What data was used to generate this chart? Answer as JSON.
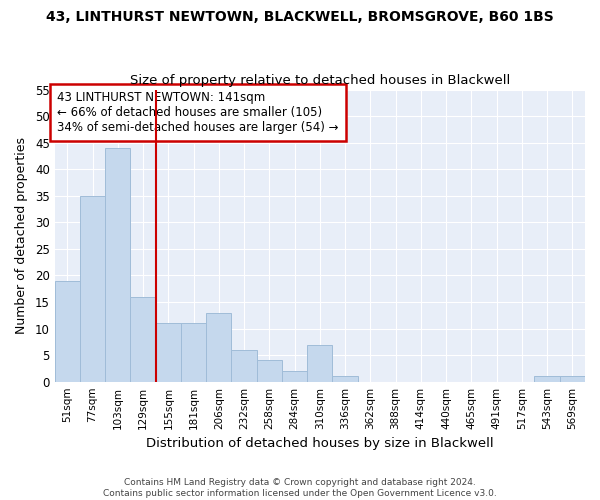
{
  "title1": "43, LINTHURST NEWTOWN, BLACKWELL, BROMSGROVE, B60 1BS",
  "title2": "Size of property relative to detached houses in Blackwell",
  "xlabel": "Distribution of detached houses by size in Blackwell",
  "ylabel": "Number of detached properties",
  "categories": [
    "51sqm",
    "77sqm",
    "103sqm",
    "129sqm",
    "155sqm",
    "181sqm",
    "206sqm",
    "232sqm",
    "258sqm",
    "284sqm",
    "310sqm",
    "336sqm",
    "362sqm",
    "388sqm",
    "414sqm",
    "440sqm",
    "465sqm",
    "491sqm",
    "517sqm",
    "543sqm",
    "569sqm"
  ],
  "values": [
    19,
    35,
    44,
    16,
    11,
    11,
    13,
    6,
    4,
    2,
    7,
    1,
    0,
    0,
    0,
    0,
    0,
    0,
    0,
    1,
    1
  ],
  "bar_color": "#c5d8ed",
  "bar_edge_color": "#a0bcd8",
  "vline_x": 3.5,
  "vline_color": "#cc0000",
  "annotation_line1": "43 LINTHURST NEWTOWN: 141sqm",
  "annotation_line2": "← 66% of detached houses are smaller (105)",
  "annotation_line3": "34% of semi-detached houses are larger (54) →",
  "annotation_box_color": "#cc0000",
  "ylim": [
    0,
    55
  ],
  "yticks": [
    0,
    5,
    10,
    15,
    20,
    25,
    30,
    35,
    40,
    45,
    50,
    55
  ],
  "footer1": "Contains HM Land Registry data © Crown copyright and database right 2024.",
  "footer2": "Contains public sector information licensed under the Open Government Licence v3.0.",
  "bg_color": "#ffffff",
  "plot_bg_color": "#e8eef8",
  "grid_color": "#ffffff"
}
